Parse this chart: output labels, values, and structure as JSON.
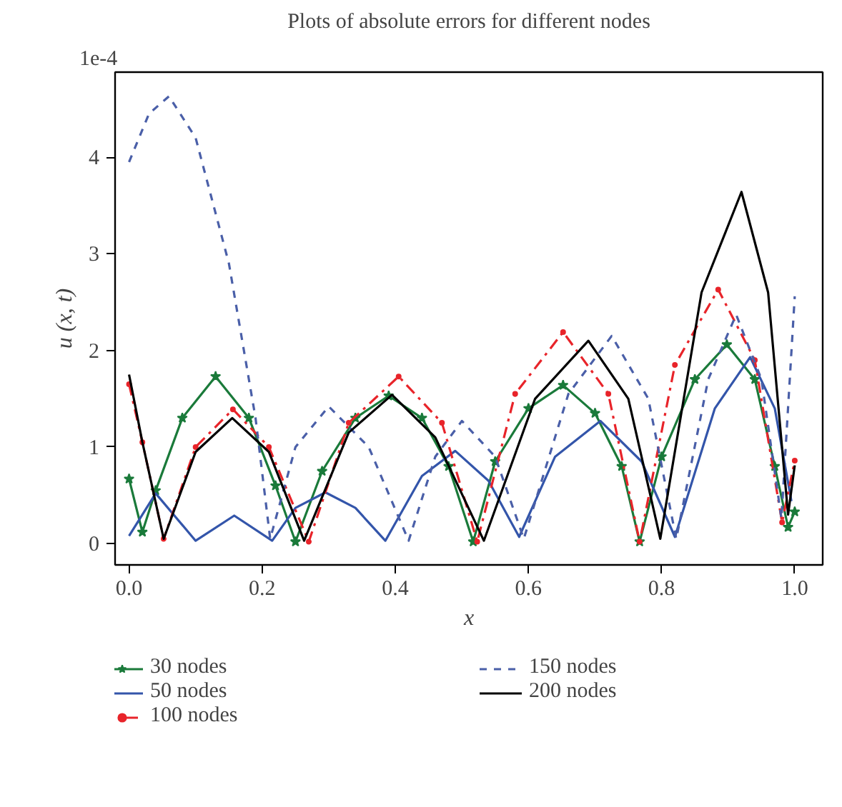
{
  "chart_data": {
    "type": "line",
    "title": "Plots of absolute errors for different nodes",
    "xlabel": "x",
    "ylabel": "u (x, t)",
    "annotations": [
      "1e-4"
    ],
    "xlim": [
      -0.021,
      1.042
    ],
    "ylim": [
      -0.22,
      4.88
    ],
    "xticks": [
      {
        "value": 0,
        "label": "0.0"
      },
      0.2,
      0.4,
      0.6,
      0.8,
      {
        "value": 1,
        "label": "1.0"
      }
    ],
    "yticks": [
      0,
      1,
      2,
      3,
      4
    ],
    "grid": false,
    "legend": "bottom",
    "series": [
      {
        "name": "30 nodes",
        "color": "#1a7a3a",
        "marker": "star",
        "line_style": "solid",
        "x": [
          0,
          0.02,
          0.04,
          0.08,
          0.13,
          0.18,
          0.22,
          0.25,
          0.29,
          0.34,
          0.39,
          0.44,
          0.48,
          0.517,
          0.55,
          0.6,
          0.652,
          0.7,
          0.74,
          0.767,
          0.8,
          0.85,
          0.898,
          0.94,
          0.97,
          0.99,
          1.0
        ],
        "values": [
          0.67,
          0.12,
          0.55,
          1.3,
          1.73,
          1.3,
          0.6,
          0.02,
          0.75,
          1.3,
          1.53,
          1.3,
          0.8,
          0.02,
          0.85,
          1.4,
          1.64,
          1.35,
          0.8,
          0.02,
          0.9,
          1.7,
          2.06,
          1.7,
          0.8,
          0.17,
          0.33
        ]
      },
      {
        "name": "50 nodes",
        "color": "#3355aa",
        "marker": "none",
        "line_style": "solid",
        "x": [
          0,
          0.04,
          0.1,
          0.158,
          0.215,
          0.25,
          0.295,
          0.34,
          0.385,
          0.44,
          0.49,
          0.54,
          0.586,
          0.64,
          0.708,
          0.77,
          0.82,
          0.88,
          0.933,
          0.97,
          0.995
        ],
        "values": [
          0.08,
          0.52,
          0.03,
          0.29,
          0.03,
          0.37,
          0.53,
          0.37,
          0.03,
          0.7,
          0.96,
          0.65,
          0.07,
          0.9,
          1.27,
          0.85,
          0.07,
          1.4,
          1.93,
          1.4,
          0.44
        ]
      },
      {
        "name": "100 nodes",
        "color": "#e8242a",
        "marker": "circle",
        "line_style": "dashed",
        "x": [
          0,
          0.02,
          0.052,
          0.1,
          0.156,
          0.21,
          0.27,
          0.33,
          0.405,
          0.47,
          0.523,
          0.58,
          0.652,
          0.72,
          0.767,
          0.82,
          0.885,
          0.94,
          0.981,
          1.0
        ],
        "values": [
          1.65,
          1.05,
          0.05,
          1.0,
          1.39,
          1.0,
          0.02,
          1.25,
          1.73,
          1.25,
          0.02,
          1.55,
          2.19,
          1.55,
          0.02,
          1.85,
          2.63,
          1.9,
          0.22,
          0.86
        ]
      },
      {
        "name": "150 nodes",
        "color": "#4a5fa8",
        "marker": "none",
        "line_style": "dotted",
        "x": [
          0,
          0.03,
          0.06,
          0.1,
          0.15,
          0.19,
          0.212,
          0.25,
          0.3,
          0.36,
          0.42,
          0.46,
          0.5,
          0.55,
          0.593,
          0.66,
          0.725,
          0.78,
          0.822,
          0.87,
          0.912,
          0.95,
          0.98,
          1.0
        ],
        "values": [
          3.95,
          4.45,
          4.63,
          4.2,
          2.9,
          1.3,
          0.05,
          1.0,
          1.42,
          1.0,
          0.03,
          0.9,
          1.27,
          0.9,
          0.05,
          1.55,
          2.15,
          1.5,
          0.05,
          1.7,
          2.37,
          1.7,
          0.26,
          2.56
        ]
      },
      {
        "name": "200 nodes",
        "color": "#000000",
        "marker": "none",
        "line_style": "solid",
        "x": [
          0,
          0.02,
          0.052,
          0.1,
          0.155,
          0.21,
          0.263,
          0.33,
          0.395,
          0.46,
          0.533,
          0.61,
          0.69,
          0.75,
          0.798,
          0.86,
          0.92,
          0.96,
          0.99,
          1.0
        ],
        "values": [
          1.75,
          1.05,
          0.05,
          0.95,
          1.3,
          0.95,
          0.03,
          1.15,
          1.54,
          1.1,
          0.03,
          1.5,
          2.1,
          1.5,
          0.05,
          2.6,
          3.64,
          2.6,
          0.3,
          0.81
        ]
      }
    ]
  }
}
